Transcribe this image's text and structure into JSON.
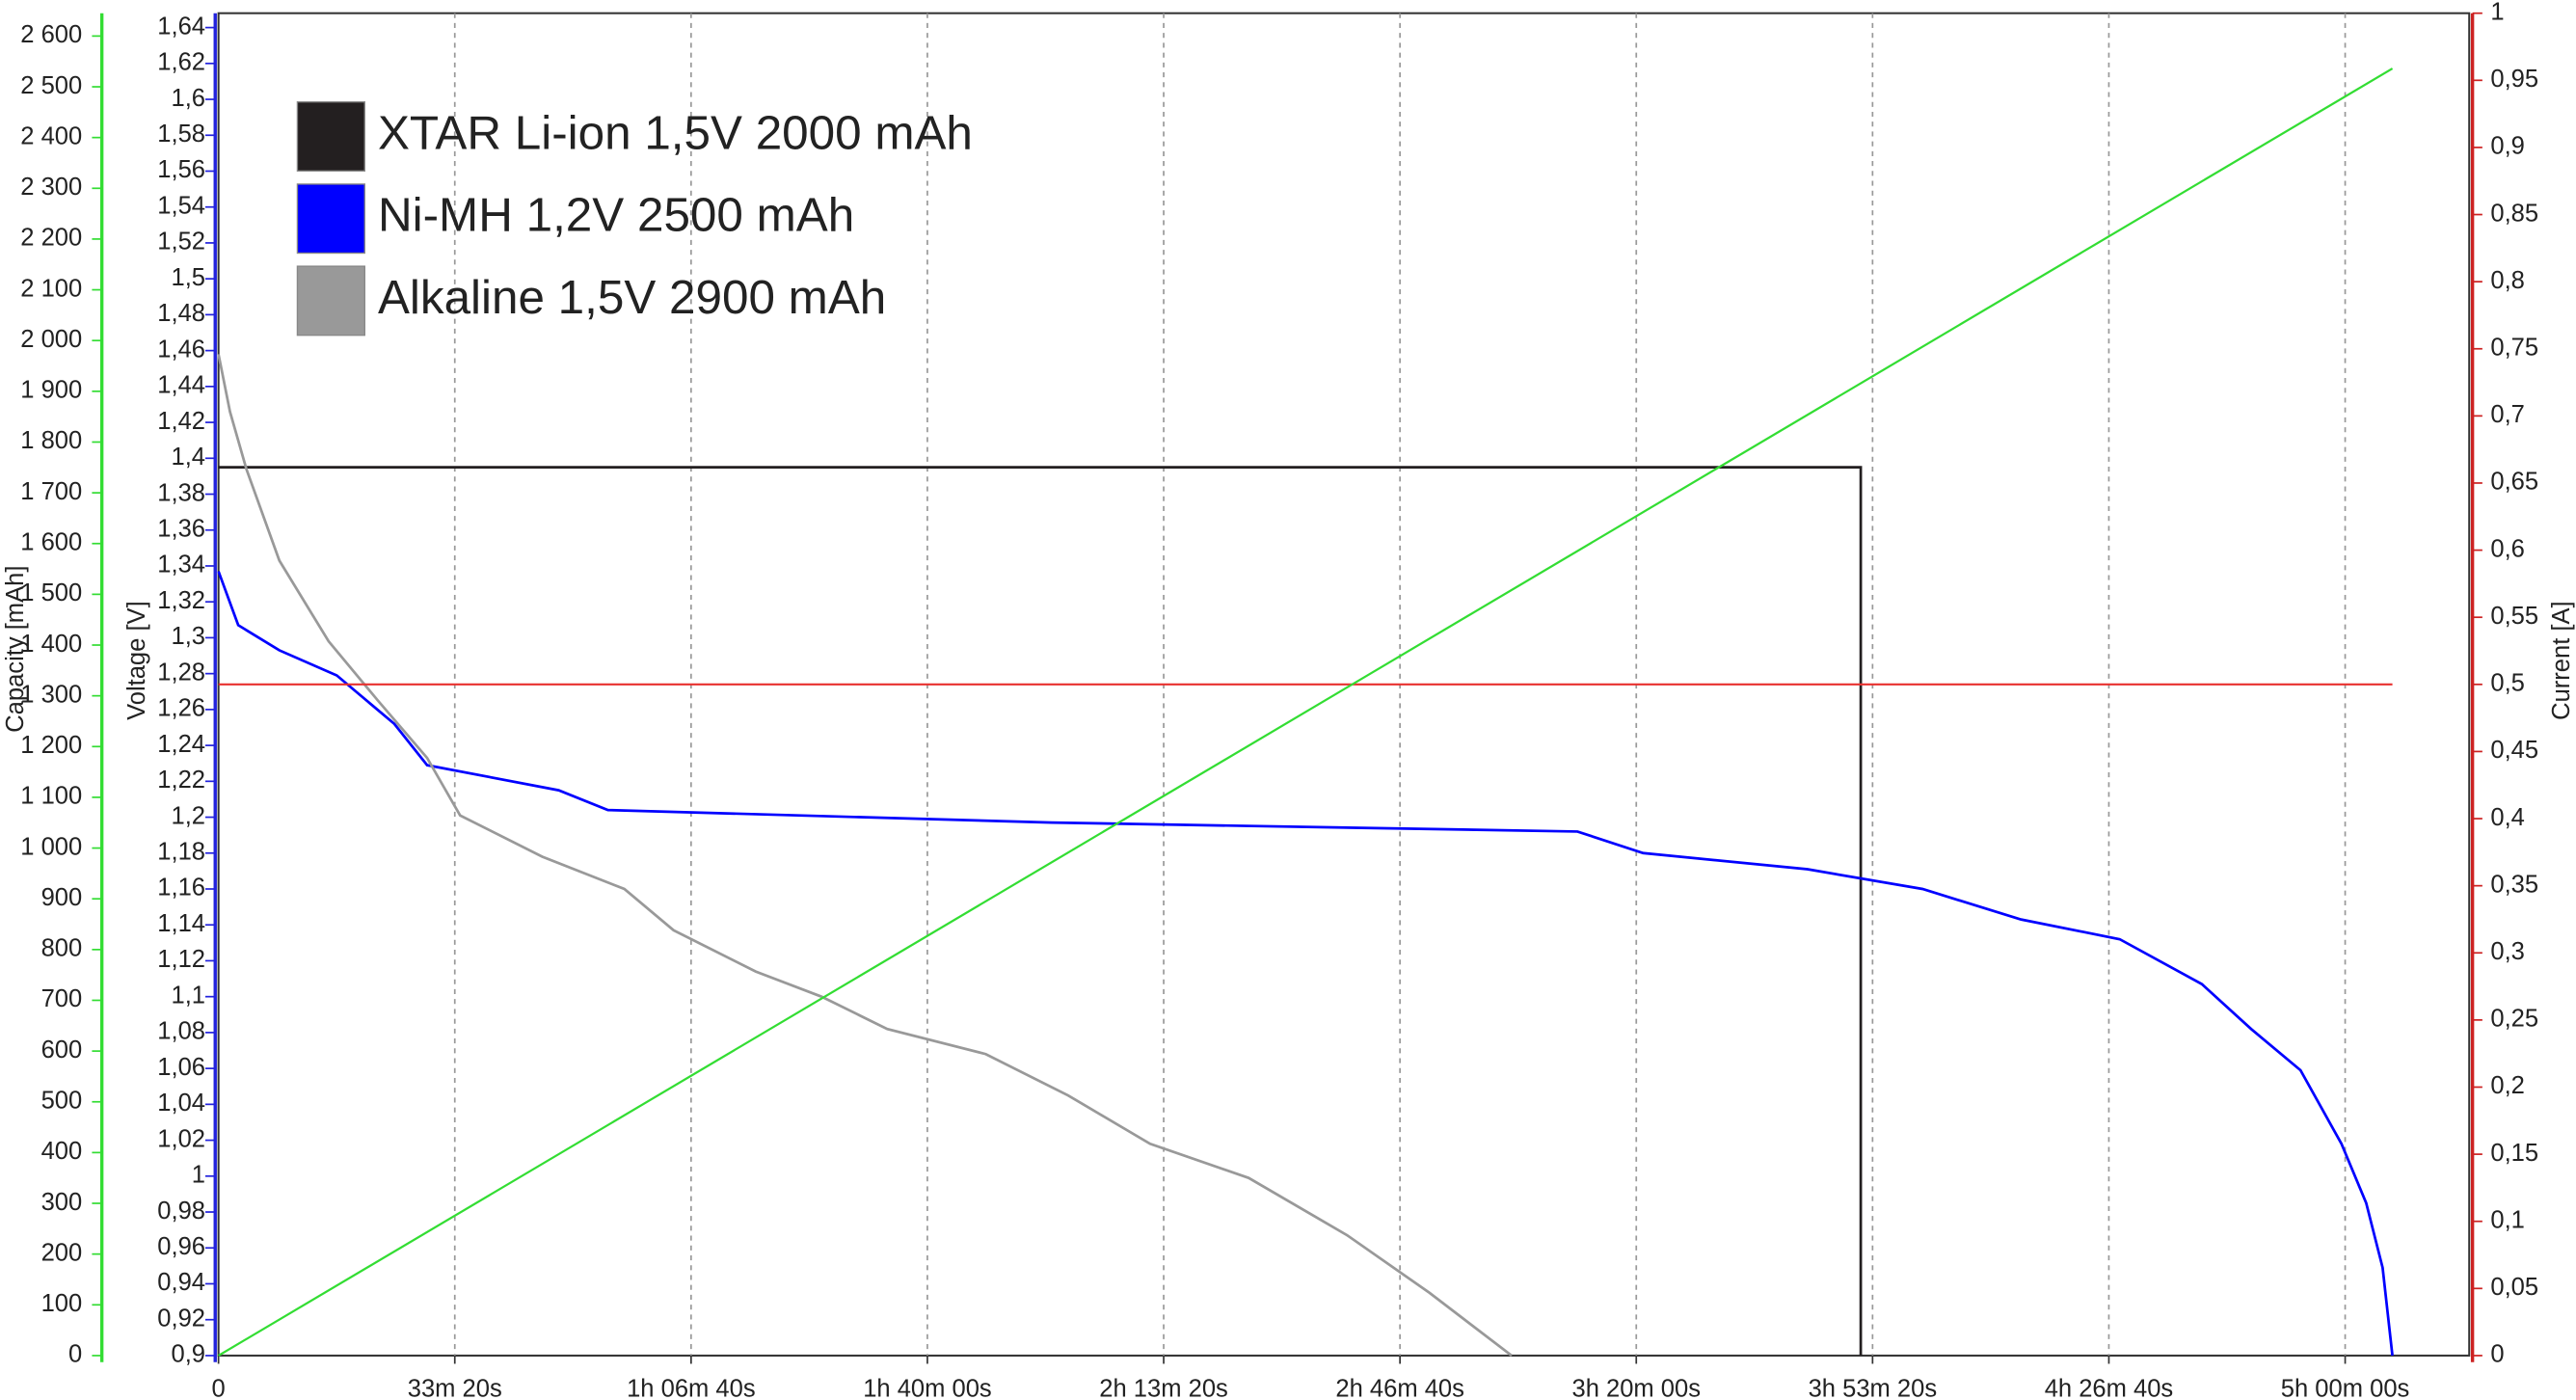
{
  "chart_data": {
    "type": "line",
    "xlabel": null,
    "ylabel": "Voltage  [V]",
    "y2label": "Current [A]",
    "capacity_axis": {
      "label": "Capacity  [mAh]",
      "lim": [
        0,
        2645
      ],
      "ticks": [
        0,
        100,
        200,
        300,
        400,
        500,
        600,
        700,
        800,
        900,
        {
          "value": 1000,
          "label": "1 000"
        },
        {
          "value": 1100,
          "label": "1 100"
        },
        {
          "value": 1200,
          "label": "1 200"
        },
        {
          "value": 1300,
          "label": "1 300"
        },
        {
          "value": 1400,
          "label": "1 400"
        },
        {
          "value": 1500,
          "label": "1 500"
        },
        {
          "value": 1600,
          "label": "1 600"
        },
        {
          "value": 1700,
          "label": "1 700"
        },
        {
          "value": 1800,
          "label": "1 800"
        },
        {
          "value": 1900,
          "label": "1 900"
        },
        {
          "value": 2000,
          "label": "2 000"
        },
        {
          "value": 2100,
          "label": "2 100"
        },
        {
          "value": 2200,
          "label": "2 200"
        },
        {
          "value": 2300,
          "label": "2 300"
        },
        {
          "value": 2400,
          "label": "2 400"
        },
        {
          "value": 2500,
          "label": "2 500"
        },
        {
          "value": 2600,
          "label": "2 600"
        }
      ]
    },
    "xlim": [
      0,
      19050
    ],
    "xticks": [
      0,
      {
        "value": 2000,
        "label": "33m 20s"
      },
      {
        "value": 4000,
        "label": "1h 06m 40s"
      },
      {
        "value": 6000,
        "label": "1h 40m 00s"
      },
      {
        "value": 8000,
        "label": "2h 13m 20s"
      },
      {
        "value": 10000,
        "label": "2h 46m 40s"
      },
      {
        "value": 12000,
        "label": "3h 20m 00s"
      },
      {
        "value": 14000,
        "label": "3h 53m 20s"
      },
      {
        "value": 16000,
        "label": "4h 26m 40s"
      },
      {
        "value": 18000,
        "label": "5h 00m 00s"
      }
    ],
    "ylim": [
      0.9,
      1.648
    ],
    "yticks": [
      {
        "value": 0.9,
        "label": "0,9"
      },
      {
        "value": 0.92,
        "label": "0,92"
      },
      {
        "value": 0.94,
        "label": "0,94"
      },
      {
        "value": 0.96,
        "label": "0,96"
      },
      {
        "value": 0.98,
        "label": "0,98"
      },
      1,
      {
        "value": 1.02,
        "label": "1,02"
      },
      {
        "value": 1.04,
        "label": "1,04"
      },
      {
        "value": 1.06,
        "label": "1,06"
      },
      {
        "value": 1.08,
        "label": "1,08"
      },
      {
        "value": 1.1,
        "label": "1,1"
      },
      {
        "value": 1.12,
        "label": "1,12"
      },
      {
        "value": 1.14,
        "label": "1,14"
      },
      {
        "value": 1.16,
        "label": "1,16"
      },
      {
        "value": 1.18,
        "label": "1,18"
      },
      {
        "value": 1.2,
        "label": "1,2"
      },
      {
        "value": 1.22,
        "label": "1,22"
      },
      {
        "value": 1.24,
        "label": "1,24"
      },
      {
        "value": 1.26,
        "label": "1,26"
      },
      {
        "value": 1.28,
        "label": "1,28"
      },
      {
        "value": 1.3,
        "label": "1,3"
      },
      {
        "value": 1.32,
        "label": "1,32"
      },
      {
        "value": 1.34,
        "label": "1,34"
      },
      {
        "value": 1.36,
        "label": "1,36"
      },
      {
        "value": 1.38,
        "label": "1,38"
      },
      {
        "value": 1.4,
        "label": "1,4"
      },
      {
        "value": 1.42,
        "label": "1,42"
      },
      {
        "value": 1.44,
        "label": "1,44"
      },
      {
        "value": 1.46,
        "label": "1,46"
      },
      {
        "value": 1.48,
        "label": "1,48"
      },
      {
        "value": 1.5,
        "label": "1,5"
      },
      {
        "value": 1.52,
        "label": "1,52"
      },
      {
        "value": 1.54,
        "label": "1,54"
      },
      {
        "value": 1.56,
        "label": "1,56"
      },
      {
        "value": 1.58,
        "label": "1,58"
      },
      {
        "value": 1.6,
        "label": "1,6"
      },
      {
        "value": 1.62,
        "label": "1,62"
      },
      {
        "value": 1.64,
        "label": "1,64"
      }
    ],
    "y2lim": [
      0,
      1
    ],
    "y2ticks": [
      0,
      {
        "value": 0.05,
        "label": "0,05"
      },
      {
        "value": 0.1,
        "label": "0,1"
      },
      {
        "value": 0.15,
        "label": "0,15"
      },
      {
        "value": 0.2,
        "label": "0,2"
      },
      {
        "value": 0.25,
        "label": "0,25"
      },
      {
        "value": 0.3,
        "label": "0,3"
      },
      {
        "value": 0.35,
        "label": "0,35"
      },
      {
        "value": 0.4,
        "label": "0,4"
      },
      {
        "value": 0.45,
        "label": "0,45"
      },
      {
        "value": 0.5,
        "label": "0,5"
      },
      {
        "value": 0.55,
        "label": "0,55"
      },
      {
        "value": 0.6,
        "label": "0,6"
      },
      {
        "value": 0.65,
        "label": "0,65"
      },
      {
        "value": 0.7,
        "label": "0,7"
      },
      {
        "value": 0.75,
        "label": "0,75"
      },
      {
        "value": 0.8,
        "label": "0,8"
      },
      {
        "value": 0.85,
        "label": "0,85"
      },
      {
        "value": 0.9,
        "label": "0,9"
      },
      {
        "value": 0.95,
        "label": "0,95"
      },
      1
    ],
    "grid": "x-dashed",
    "legend": "upper left",
    "series": [
      {
        "name": "XTAR Li-ion 1,5V 2000 mAh",
        "color": "#231f20",
        "axis": "y",
        "x": [
          0,
          13900,
          13900
        ],
        "values": [
          1.395,
          1.395,
          0.9
        ]
      },
      {
        "name": "Ni-MH 1,2V 2500 mAh",
        "color": "#0000ff",
        "axis": "y",
        "x": [
          0,
          167,
          515,
          1001,
          1488,
          1766,
          2879,
          3296,
          7051,
          11502,
          12058,
          13449,
          14423,
          15257,
          16092,
          16787,
          17204,
          17622,
          17969,
          18178,
          18317,
          18400
        ],
        "values": [
          1.337,
          1.307,
          1.293,
          1.279,
          1.252,
          1.229,
          1.215,
          1.204,
          1.197,
          1.192,
          1.18,
          1.171,
          1.16,
          1.143,
          1.132,
          1.107,
          1.082,
          1.059,
          1.018,
          0.985,
          0.949,
          0.9
        ]
      },
      {
        "name": "Alkaline 1,5V 2900 mAh",
        "color": "#999999",
        "axis": "y",
        "x": [
          0,
          97,
          236,
          515,
          932,
          1349,
          1766,
          2045,
          2740,
          3435,
          3852,
          4547,
          5104,
          5660,
          6494,
          7190,
          7885,
          8719,
          9554,
          10249,
          10945
        ],
        "values": [
          1.458,
          1.426,
          1.394,
          1.343,
          1.298,
          1.265,
          1.233,
          1.201,
          1.178,
          1.16,
          1.137,
          1.114,
          1.1,
          1.082,
          1.068,
          1.045,
          1.018,
          0.999,
          0.967,
          0.935,
          0.9
        ]
      },
      {
        "color": "#e8312f",
        "axis": "y2",
        "x": [
          0,
          18400
        ],
        "values": [
          0.5,
          0.5
        ]
      },
      {
        "color": "#33dd33",
        "axis": "capacity",
        "x": [
          0,
          18400
        ],
        "values": [
          0,
          2536
        ]
      }
    ]
  }
}
